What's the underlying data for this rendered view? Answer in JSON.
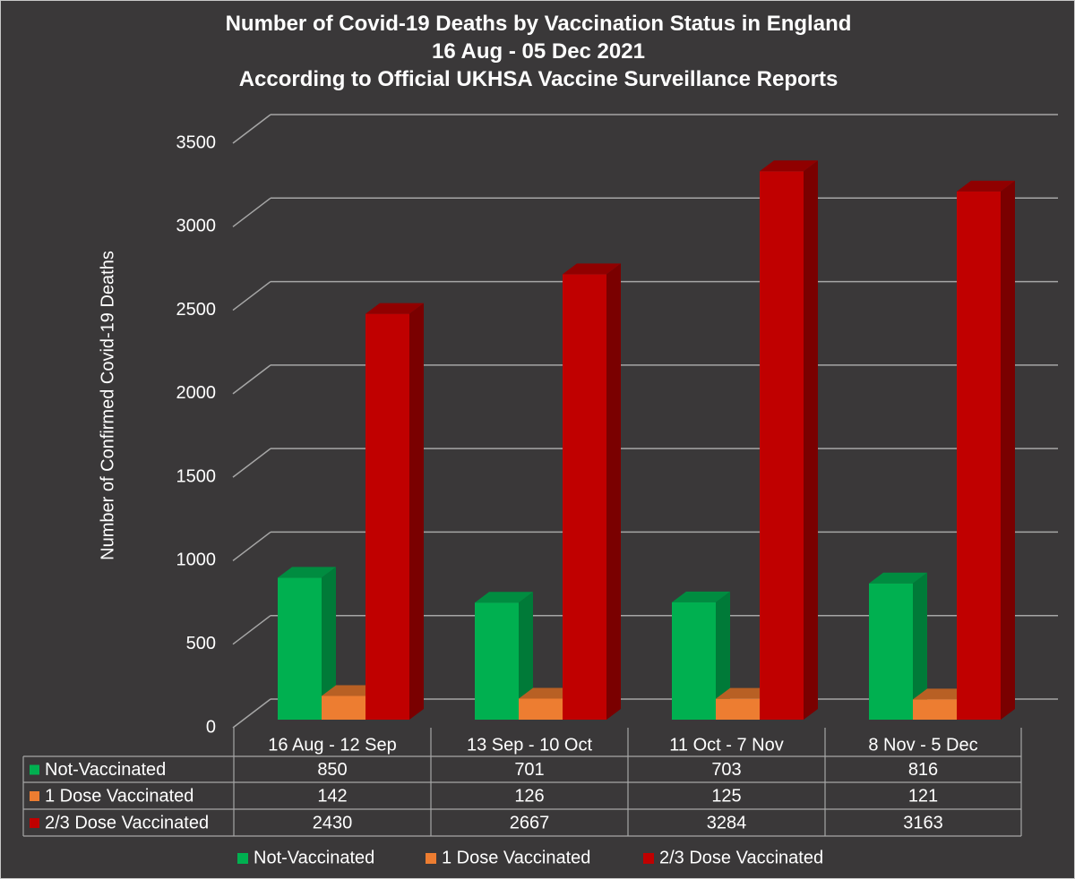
{
  "chart_data": {
    "type": "bar",
    "style": "3d-clustered-column",
    "title": [
      "Number of Covid-19 Deaths by Vaccination Status in England",
      "16 Aug - 05 Dec 2021",
      "According to Official UKHSA Vaccine Surveillance Reports"
    ],
    "xlabel": "",
    "ylabel": "Number of Confirmed Covid-19 Deaths",
    "ylim": [
      0,
      3500
    ],
    "yticks": [
      0,
      500,
      1000,
      1500,
      2000,
      2500,
      3000,
      3500
    ],
    "grid": true,
    "categories": [
      "16 Aug - 12 Sep",
      "13 Sep - 10 Oct",
      "11 Oct - 7 Nov",
      "8 Nov - 5 Dec"
    ],
    "series": [
      {
        "name": "Not-Vaccinated",
        "color": "#00b050",
        "side": "#007a38",
        "top": "#008c40",
        "values": [
          850,
          701,
          703,
          816
        ]
      },
      {
        "name": "1 Dose Vaccinated",
        "color": "#ed7d31",
        "side": "#a8581f",
        "top": "#b86024",
        "values": [
          142,
          126,
          125,
          121
        ]
      },
      {
        "name": "2/3 Dose Vaccinated",
        "color": "#c00000",
        "side": "#7a0000",
        "top": "#900000",
        "values": [
          2430,
          2667,
          3284,
          3163
        ]
      }
    ],
    "data_table": true,
    "legend": "bottom"
  },
  "colors": {
    "background": "#3a3839",
    "grid": "#a6a6a6",
    "text": "#ffffff"
  }
}
